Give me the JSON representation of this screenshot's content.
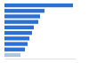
{
  "chart_data": {
    "type": "bar",
    "orientation": "horizontal",
    "categories": [
      null,
      null,
      null,
      null,
      null,
      null,
      null,
      null,
      null,
      null
    ],
    "values": [
      77,
      45,
      40,
      38,
      33,
      31,
      28,
      26,
      23,
      18
    ],
    "colors": [
      "#2d6fd2",
      "#2d6fd2",
      "#2d6fd2",
      "#2d6fd2",
      "#2d6fd2",
      "#2d6fd2",
      "#2d6fd2",
      "#2d6fd2",
      "#2d6fd2",
      "#b3c3e3"
    ],
    "xlim": [
      0,
      80
    ],
    "tick_labels": false
  }
}
